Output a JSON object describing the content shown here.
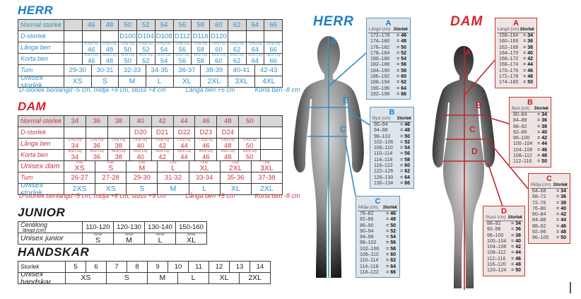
{
  "colors": {
    "teal": "#2e93c7",
    "blue_title": "#1b7ec2",
    "red": "#cc3340",
    "red_title": "#d6252b",
    "header_bg": "#d8d8d8"
  },
  "left": {
    "herr": {
      "title": "HERR",
      "header_bg": true,
      "rows": [
        {
          "label": "Normal storlek",
          "cells": [
            "",
            "46",
            "48",
            "50",
            "52",
            "54",
            "56",
            "58",
            "60",
            "62",
            "64",
            "66"
          ]
        },
        {
          "label": "D-storlek",
          "cells": [
            "",
            "",
            "",
            "D100",
            "D104",
            "D108",
            "D112",
            "D116",
            "D120",
            "",
            "",
            ""
          ]
        },
        {
          "label": "Långa ben",
          "tiny": "Long Leg",
          "cells": [
            "",
            "46",
            "48",
            "50",
            "52",
            "54",
            "56",
            "58",
            "60",
            "62",
            "64",
            "66"
          ]
        },
        {
          "label": "Korta ben",
          "tiny": "Short Leg",
          "cells": [
            "",
            "46",
            "48",
            "50",
            "52",
            "54",
            "56",
            "58",
            "60",
            "62",
            "64",
            "66"
          ]
        }
      ],
      "span_rows": [
        {
          "label": "Tum",
          "cells": [
            "29-30",
            "30-31",
            "32-33",
            "34-35",
            "36-37",
            "38-39",
            "40-41",
            "42-43"
          ]
        },
        {
          "label": "Unisex storlek",
          "big": true,
          "cells": [
            "XS",
            "S",
            "M",
            "L",
            "XL",
            "2XL",
            "3XL",
            "4XL"
          ]
        }
      ],
      "footnotes": [
        "D-storlek benlängd -5 cm, midja +9 cm, stuss +4 cm",
        "Långa ben +5 cm",
        "Korta ben -8 cm"
      ]
    },
    "dam": {
      "title": "DAM",
      "header_bg": true,
      "rows": [
        {
          "label": "Normal storlek",
          "cells": [
            "34",
            "36",
            "38",
            "40",
            "42",
            "44",
            "46",
            "48",
            "50",
            ""
          ]
        },
        {
          "label": "D-storlek",
          "cells": [
            "",
            "",
            "",
            "D20",
            "D21",
            "D22",
            "D23",
            "D24",
            "",
            ""
          ]
        },
        {
          "label": "Långa ben",
          "tiny": "Long Leg",
          "cells": [
            "34",
            "36",
            "38",
            "40",
            "42",
            "44",
            "46",
            "48",
            "50",
            ""
          ]
        },
        {
          "label": "Korta ben",
          "tiny": "Short Leg",
          "cells": [
            "34",
            "36",
            "38",
            "40",
            "42",
            "44",
            "46",
            "48",
            "50",
            ""
          ]
        }
      ],
      "span_rows": [
        {
          "label": "Unisex dam",
          "tiny": "Lady",
          "big": true,
          "cells": [
            "XS",
            "S",
            "M",
            "L",
            "XL",
            "2XL",
            "3XL"
          ]
        },
        {
          "label": "Tum",
          "cells": [
            "26-27",
            "27-28",
            "29-30",
            "31-32",
            "33-34",
            "35-36",
            "37-38"
          ]
        },
        {
          "label": "Unisex storlek",
          "big": true,
          "accent": "teal",
          "cells": [
            "2XS",
            "XS",
            "S",
            "M",
            "L",
            "XL",
            "2XL"
          ]
        }
      ],
      "footnotes": [
        "D-storlek benlängd -5 cm, midja +6 cm, stuss +9 cm",
        "Långa ben +5 cm",
        "Korta ben -8 cm"
      ]
    },
    "junior": {
      "title": "JUNIOR",
      "header_bg": false,
      "rows": [
        {
          "label": "Centilong",
          "label2": "längd (cm)",
          "cells": [
            "110-120",
            "120-130",
            "130-140",
            "150-160"
          ]
        },
        {
          "label": "Unisex junior",
          "tiny": "Junior",
          "big": true,
          "cells": [
            "S",
            "M",
            "L",
            "XL"
          ]
        }
      ],
      "span_rows": []
    },
    "handskar": {
      "title": "HANDSKAR",
      "header_bg": false,
      "rows": [
        {
          "label": "Storlek",
          "cells": [
            "5",
            "6",
            "7",
            "8",
            "9",
            "10",
            "11",
            "12",
            "13",
            "14"
          ]
        }
      ],
      "span_rows": [
        {
          "label": "Unisex handskar",
          "big": true,
          "spans": [
            2,
            2,
            1.5,
            1.5,
            1.5,
            1.5
          ],
          "cells": [
            "XS",
            "S",
            "M",
            "L",
            "XL",
            "2XL"
          ]
        }
      ]
    }
  },
  "right": {
    "herr": {
      "title": "HERR",
      "markers": [
        "A",
        "B",
        "C"
      ],
      "tables": [
        {
          "letter": "A",
          "measure": "Längd (cm)",
          "size_label": "Storlek",
          "rows": [
            [
              "172–178",
              "46"
            ],
            [
              "174–180",
              "48"
            ],
            [
              "176–182",
              "50"
            ],
            [
              "178–184",
              "52"
            ],
            [
              "180–186",
              "54"
            ],
            [
              "182–188",
              "56"
            ],
            [
              "184–190",
              "58"
            ],
            [
              "186–192",
              "60"
            ],
            [
              "188–194",
              "62"
            ],
            [
              "190–196",
              "64"
            ],
            [
              "192–198",
              "66"
            ]
          ]
        },
        {
          "letter": "B",
          "measure": "Byst (cm)",
          "size_label": "Storlek",
          "rows": [
            [
              "90–94",
              "46"
            ],
            [
              "94–98",
              "48"
            ],
            [
              "98–102",
              "50"
            ],
            [
              "102–106",
              "52"
            ],
            [
              "106–110",
              "54"
            ],
            [
              "110–114",
              "56"
            ],
            [
              "114–118",
              "58"
            ],
            [
              "118–122",
              "60"
            ],
            [
              "122–126",
              "62"
            ],
            [
              "126–130",
              "64"
            ],
            [
              "130–134",
              "66"
            ]
          ]
        },
        {
          "letter": "C",
          "measure": "Midja (cm)",
          "size_label": "Storlek",
          "rows": [
            [
              "78–82",
              "46"
            ],
            [
              "82–86",
              "48"
            ],
            [
              "86–90",
              "50"
            ],
            [
              "90–94",
              "52"
            ],
            [
              "94–98",
              "54"
            ],
            [
              "98–102",
              "56"
            ],
            [
              "102–106",
              "58"
            ],
            [
              "106–110",
              "60"
            ],
            [
              "110–114",
              "62"
            ],
            [
              "114–118",
              "64"
            ],
            [
              "118–122",
              "66"
            ]
          ]
        }
      ]
    },
    "dam": {
      "title": "DAM",
      "markers": [
        "A",
        "B",
        "C",
        "D"
      ],
      "tables": [
        {
          "letter": "A",
          "measure": "Längd (cm)",
          "size_label": "Storlek",
          "rows": [
            [
              "158–164",
              "34"
            ],
            [
              "160–166",
              "36"
            ],
            [
              "162–168",
              "38"
            ],
            [
              "164–170",
              "40"
            ],
            [
              "166–172",
              "42"
            ],
            [
              "168–174",
              "44"
            ],
            [
              "170–176",
              "46"
            ],
            [
              "172–178",
              "48"
            ],
            [
              "174–180",
              "50"
            ]
          ]
        },
        {
          "letter": "B",
          "measure": "Byst (cm)",
          "size_label": "Storlek",
          "rows": [
            [
              "80–84",
              "34"
            ],
            [
              "84–88",
              "36"
            ],
            [
              "88–92",
              "38"
            ],
            [
              "92–96",
              "40"
            ],
            [
              "96–100",
              "42"
            ],
            [
              "100–104",
              "44"
            ],
            [
              "104–108",
              "46"
            ],
            [
              "108–112",
              "48"
            ],
            [
              "112–116",
              "50"
            ]
          ]
        },
        {
          "letter": "C",
          "measure": "Midja (cm)",
          "size_label": "Storlek",
          "rows": [
            [
              "64–68",
              "34"
            ],
            [
              "68–72",
              "36"
            ],
            [
              "72–76",
              "38"
            ],
            [
              "76–80",
              "40"
            ],
            [
              "80–84",
              "42"
            ],
            [
              "84–88",
              "44"
            ],
            [
              "88–92",
              "46"
            ],
            [
              "92–96",
              "48"
            ],
            [
              "96–100",
              "50"
            ]
          ]
        },
        {
          "letter": "D",
          "measure": "Stuss (cm)",
          "size_label": "Storlek",
          "rows": [
            [
              "88–92",
              "34"
            ],
            [
              "92–96",
              "36"
            ],
            [
              "96–100",
              "38"
            ],
            [
              "100–104",
              "40"
            ],
            [
              "104–108",
              "42"
            ],
            [
              "108–112",
              "44"
            ],
            [
              "112–116",
              "46"
            ],
            [
              "116–120",
              "48"
            ],
            [
              "120–124",
              "50"
            ]
          ]
        }
      ]
    }
  }
}
